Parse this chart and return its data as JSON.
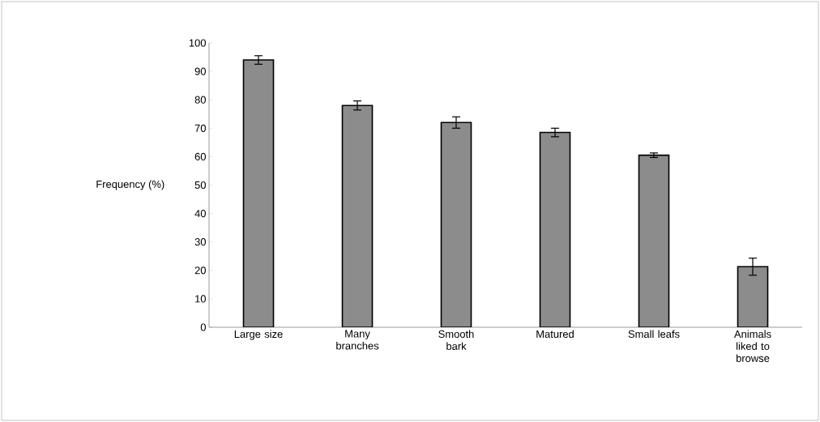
{
  "chart_data": {
    "type": "bar",
    "ylabel": "Frequency (%)",
    "categories": [
      "Large size",
      "Many branches",
      "Smooth bark",
      "Matured",
      "Small leafs",
      "Animals liked to browse"
    ],
    "values": [
      94,
      78,
      72,
      68.5,
      60.5,
      21.3
    ],
    "errors": [
      1.5,
      1.6,
      2,
      1.5,
      0.8,
      3
    ],
    "color": "#8c8c8c",
    "ylim": [
      0,
      100
    ],
    "yticks": [
      0,
      10,
      20,
      30,
      40,
      50,
      60,
      70,
      80,
      90,
      100
    ],
    "grid": false
  }
}
